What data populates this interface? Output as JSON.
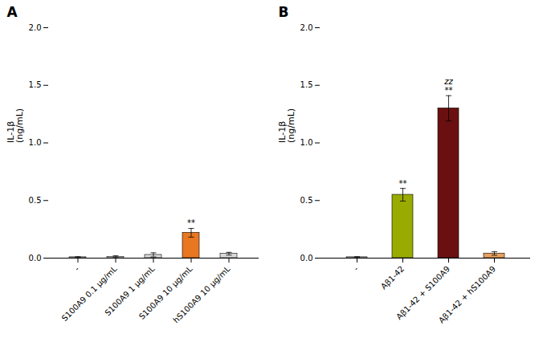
{
  "chart_data": [
    {
      "type": "bar",
      "title": "A",
      "ylabel": "IL-1β\n(ng/mL)",
      "categories": [
        "-",
        "S100A9 0.1 μg/mL",
        "S100A9 1 μg/mL",
        "S100A9 10 μg/mL",
        "hS100A9 10 μg/mL"
      ],
      "values": [
        0.008,
        0.012,
        0.028,
        0.22,
        0.038
      ],
      "errors": [
        0.004,
        0.008,
        0.018,
        0.038,
        0.012
      ],
      "colors": [
        "#d8d8d8",
        "#d8d8d8",
        "#d8d8d8",
        "#E87722",
        "#d8d8d8"
      ],
      "annotations": [
        {
          "x": "S100A9 10 μg/mL",
          "text": "**"
        }
      ],
      "ylim": [
        0,
        2.0
      ],
      "yticks": [
        {
          "value": 0.0,
          "label": "0.0"
        },
        {
          "value": 0.5,
          "label": "0.5"
        },
        {
          "value": 1.0,
          "label": "1.0"
        },
        {
          "value": 1.5,
          "label": "1.5"
        },
        {
          "value": 2.0,
          "label": "2.0"
        }
      ],
      "grid": false
    },
    {
      "type": "bar",
      "title": "B",
      "ylabel": "IL-1β\n(ng/mL)",
      "categories": [
        "-",
        "Aβ1-42",
        "Aβ1-42 + S100A9",
        "Aβ1-42 + hS100A9"
      ],
      "values": [
        0.008,
        0.55,
        1.3,
        0.04
      ],
      "errors": [
        0.004,
        0.055,
        0.11,
        0.015
      ],
      "colors": [
        "#d8d8d8",
        "#99AA00",
        "#6B1010",
        "#E8A060"
      ],
      "annotations": [
        {
          "x": "Aβ1-42",
          "text": "**"
        },
        {
          "x": "Aβ1-42 + S100A9",
          "text": "**"
        },
        {
          "x": "Aβ1-42 + S100A9",
          "text": "zz"
        }
      ],
      "ylim": [
        0,
        2.0
      ],
      "yticks": [
        {
          "value": 0.0,
          "label": "0.0"
        },
        {
          "value": 0.5,
          "label": "0.5"
        },
        {
          "value": 1.0,
          "label": "1.0"
        },
        {
          "value": 1.5,
          "label": "1.5"
        },
        {
          "value": 2.0,
          "label": "2.0"
        }
      ],
      "grid": false
    }
  ]
}
